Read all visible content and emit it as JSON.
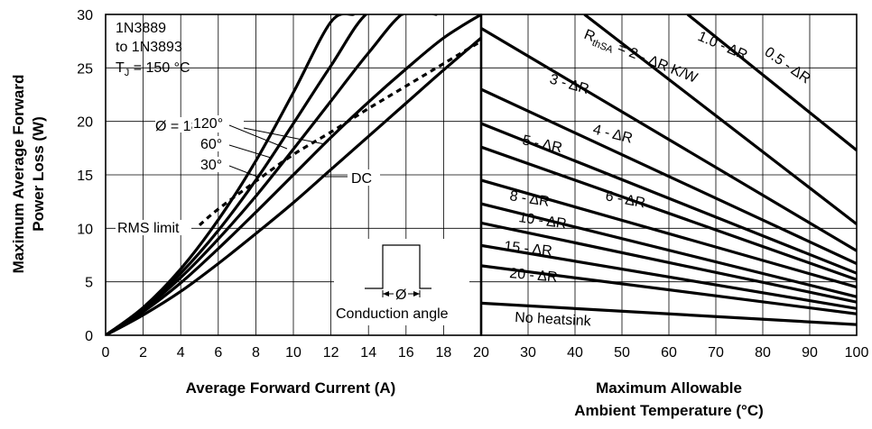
{
  "chart_data": [
    {
      "type": "line",
      "ylabel_line1": "Maximum Average Forward",
      "ylabel_line2": "Power Loss (W)",
      "xlabel": "Average Forward Current (A)",
      "xlim": [
        0,
        20
      ],
      "ylim": [
        0,
        30
      ],
      "xticks": [
        "0",
        "2",
        "4",
        "6",
        "8",
        "10",
        "12",
        "14",
        "16",
        "18",
        "20"
      ],
      "yticks": [
        "0",
        "5",
        "10",
        "15",
        "20",
        "25",
        "30"
      ],
      "grid": true,
      "device_line1": "1N3889",
      "device_line2": "to 1N3893",
      "tj_prefix": "T",
      "tj_sub": "J",
      "tj_suffix": " = 150 °C",
      "conduction_label": "Conduction angle",
      "phi_symbol": "Ø",
      "rms_label": "RMS limit",
      "series": [
        {
          "name": "Ø = 180°",
          "x": [
            0,
            2,
            4,
            6,
            8,
            10,
            12,
            13.2
          ],
          "y": [
            0,
            2.6,
            6.2,
            10.8,
            16.3,
            22.7,
            29.3,
            30
          ]
        },
        {
          "name": "120°",
          "x": [
            0,
            2,
            4,
            6,
            8,
            10,
            12,
            14,
            15.8
          ],
          "y": [
            0,
            2.5,
            5.8,
            9.8,
            14.5,
            19.8,
            25.2,
            30.2,
            30
          ]
        },
        {
          "name": "60°",
          "x": [
            0,
            2,
            4,
            6,
            8,
            10,
            12,
            14,
            16,
            17.6
          ],
          "y": [
            0,
            2.4,
            5.4,
            9.0,
            13.0,
            17.4,
            21.9,
            26.4,
            30.3,
            30
          ]
        },
        {
          "name": "30°",
          "x": [
            0,
            2,
            4,
            6,
            8,
            10,
            12,
            14,
            16,
            18,
            20
          ],
          "y": [
            0,
            2.2,
            4.9,
            8.1,
            11.5,
            15.0,
            18.5,
            21.8,
            24.9,
            27.8,
            30
          ]
        },
        {
          "name": "DC",
          "x": [
            0,
            2,
            4,
            6,
            8,
            10,
            12,
            14,
            16,
            18,
            20
          ],
          "y": [
            0,
            1.9,
            4.1,
            6.7,
            9.5,
            12.4,
            15.5,
            18.6,
            21.7,
            24.8,
            27.8
          ]
        }
      ],
      "rms_limit": {
        "x": [
          5,
          6,
          8,
          10,
          12,
          14,
          16,
          18,
          20
        ],
        "y": [
          10.3,
          11.8,
          14.4,
          16.9,
          19.0,
          21.2,
          23.3,
          25.4,
          27.5
        ]
      }
    },
    {
      "type": "line",
      "xlabel_line1": "Maximum Allowable",
      "xlabel_line2": "Ambient Temperature (°C)",
      "xlim": [
        0,
        100
      ],
      "ylim": [
        0,
        30
      ],
      "xticks": [
        "20",
        "30",
        "40",
        "50",
        "60",
        "70",
        "80",
        "90",
        "100"
      ],
      "grid": true,
      "series": [
        {
          "name": "0.5 - ΔR",
          "x": [
            64,
            100
          ],
          "y": [
            30,
            17.3
          ]
        },
        {
          "name": "1.0 - ΔR",
          "x": [
            42,
            100
          ],
          "y": [
            30,
            10.4
          ]
        },
        {
          "name": "2 - ΔR K/W",
          "x": [
            20,
            100
          ],
          "y": [
            28.7,
            7.9
          ]
        },
        {
          "name": "3 - ΔR",
          "x": [
            20,
            100
          ],
          "y": [
            23.0,
            6.7
          ]
        },
        {
          "name": "4 - ΔR",
          "x": [
            20,
            100
          ],
          "y": [
            19.8,
            5.8
          ]
        },
        {
          "name": "5 - ΔR",
          "x": [
            20,
            100
          ],
          "y": [
            17.6,
            5.2
          ]
        },
        {
          "name": "6 - ΔR",
          "x": [
            20,
            100
          ],
          "y": [
            14.5,
            4.5
          ]
        },
        {
          "name": "8 - ΔR",
          "x": [
            20,
            100
          ],
          "y": [
            12.3,
            3.6
          ]
        },
        {
          "name": "10 - ΔR",
          "x": [
            20,
            100
          ],
          "y": [
            10.5,
            3.1
          ]
        },
        {
          "name": "15 - ΔR",
          "x": [
            20,
            100
          ],
          "y": [
            8.4,
            2.5
          ]
        },
        {
          "name": "20 - ΔR",
          "x": [
            20,
            100
          ],
          "y": [
            6.5,
            2.0
          ]
        },
        {
          "name": "No heatsink",
          "x": [
            20,
            100
          ],
          "y": [
            3.0,
            1.0
          ]
        }
      ],
      "rth_prefix": "R",
      "rth_sub": "thSA",
      "rth_suffix": " = 2 - ΔR K/W"
    }
  ]
}
